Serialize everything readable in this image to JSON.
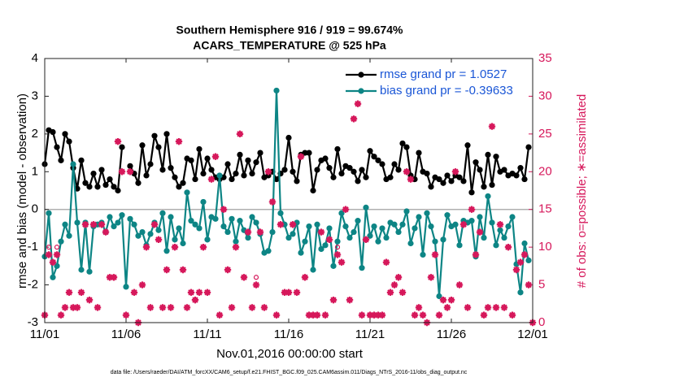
{
  "chart_data": {
    "type": "line",
    "title": "Southern Hemisphere 916 / 919 = 99.674%",
    "subtitle": "ACARS_TEMPERATURE @ 525 hPa",
    "xlabel": "Nov.01,2016 00:00:00 start",
    "ylabel": "rmse and bias (model - observation)",
    "y2label": "# of obs: o=possible; ∗=assimilated",
    "footnote": "data file: /Users/raeder/DAI/ATM_forcXX/CAM6_setup/f.e21.FHIST_BGC.f09_025.CAM6assim.011/Diags_NTrS_2016-11/obs_diag_output.nc",
    "xlim": [
      0,
      30
    ],
    "xticks": [
      {
        "value": 0,
        "label": "11/01"
      },
      {
        "value": 5,
        "label": "11/06"
      },
      {
        "value": 10,
        "label": "11/11"
      },
      {
        "value": 15,
        "label": "11/16"
      },
      {
        "value": 20,
        "label": "11/21"
      },
      {
        "value": 25,
        "label": "11/26"
      },
      {
        "value": 30,
        "label": "12/01"
      }
    ],
    "ylim": [
      -3,
      4
    ],
    "yticks": [
      -3,
      -2,
      -1,
      0,
      1,
      2,
      3,
      4
    ],
    "y2lim": [
      0,
      35
    ],
    "y2ticks": [
      0,
      5,
      10,
      15,
      20,
      25,
      30,
      35
    ],
    "zero_line": true,
    "legend": "upper right",
    "x": [
      0,
      0.25,
      0.5,
      0.75,
      1,
      1.25,
      1.5,
      1.75,
      2,
      2.25,
      2.5,
      2.75,
      3,
      3.25,
      3.5,
      3.75,
      4,
      4.25,
      4.5,
      4.75,
      5,
      5.25,
      5.5,
      5.75,
      6,
      6.25,
      6.5,
      6.75,
      7,
      7.25,
      7.5,
      7.75,
      8,
      8.25,
      8.5,
      8.75,
      9,
      9.25,
      9.5,
      9.75,
      10,
      10.25,
      10.5,
      10.75,
      11,
      11.25,
      11.5,
      11.75,
      12,
      12.25,
      12.5,
      12.75,
      13,
      13.25,
      13.5,
      13.75,
      14,
      14.25,
      14.5,
      14.75,
      15,
      15.25,
      15.5,
      15.75,
      16,
      16.25,
      16.5,
      16.75,
      17,
      17.25,
      17.5,
      17.75,
      18,
      18.25,
      18.5,
      18.75,
      19,
      19.25,
      19.5,
      19.75,
      20,
      20.25,
      20.5,
      20.75,
      21,
      21.25,
      21.5,
      21.75,
      22,
      22.25,
      22.5,
      22.75,
      23,
      23.25,
      23.5,
      23.75,
      24,
      24.25,
      24.5,
      24.75,
      25,
      25.25,
      25.5,
      25.75,
      26,
      26.25,
      26.5,
      26.75,
      27,
      27.25,
      27.5,
      27.75,
      28,
      28.25,
      28.5,
      28.75,
      29,
      29.25,
      29.5,
      29.75,
      30
    ],
    "series": [
      {
        "name": "rmse grand pr = 1.0527",
        "color": "#000000",
        "marker": "dot",
        "values": [
          1.2,
          2.1,
          2.05,
          1.65,
          1.3,
          2.0,
          1.8,
          1.1,
          0.55,
          1.3,
          0.7,
          0.6,
          0.95,
          0.6,
          1.05,
          0.65,
          0.8,
          0.6,
          0.5,
          1.65,
          null,
          1.15,
          0.95,
          0.7,
          1.7,
          0.9,
          1.2,
          1.95,
          1.65,
          1.05,
          2.0,
          1.1,
          0.85,
          0.6,
          0.7,
          1.35,
          1.3,
          0.8,
          1.6,
          0.95,
          1.35,
          1.05,
          0.85,
          0.8,
          0.85,
          1.2,
          0.8,
          0.95,
          1.45,
          0.9,
          1.3,
          0.95,
          1.25,
          1.5,
          0.85,
          0.9,
          1.0,
          0.8,
          0.95,
          1.05,
          1.9,
          1.0,
          0.75,
          1.45,
          1.5,
          1.5,
          0.5,
          1.05,
          1.3,
          1.35,
          1.1,
          0.85,
          1.6,
          0.95,
          1.15,
          1.1,
          1.0,
          0.75,
          1.05,
          0.85,
          1.55,
          1.4,
          1.3,
          1.2,
          0.8,
          0.85,
          1.2,
          1.05,
          1.75,
          1.65,
          0.9,
          0.8,
          1.5,
          1.0,
          0.95,
          0.6,
          0.85,
          0.8,
          0.7,
          0.9,
          0.75,
          0.9,
          0.85,
          0.75,
          1.7,
          0.45,
          1.25,
          1.05,
          0.6,
          1.45,
          0.65,
          1.4,
          1.0,
          1.05,
          0.9,
          0.95,
          0.9,
          1.1,
          0.8,
          1.65,
          null
        ]
      },
      {
        "name": "bias grand pr = -0.39633",
        "color": "#0d8585",
        "marker": "dot",
        "values": [
          -1.25,
          -0.1,
          -1.8,
          -1.5,
          -0.85,
          -0.4,
          -0.7,
          1.2,
          -0.35,
          -1.6,
          -0.35,
          -1.65,
          -0.45,
          -0.4,
          -0.35,
          -0.6,
          -0.2,
          -0.45,
          -0.35,
          -0.15,
          -2.05,
          -0.25,
          -0.4,
          -0.7,
          -0.6,
          -0.95,
          -0.65,
          -0.35,
          -0.55,
          -0.1,
          -1.1,
          -0.2,
          -0.8,
          -0.5,
          -0.9,
          0.45,
          -0.3,
          -0.4,
          -0.5,
          0.2,
          -0.8,
          -0.2,
          -0.25,
          0.9,
          -0.45,
          -0.6,
          -0.25,
          -0.85,
          -0.3,
          -0.55,
          -0.75,
          -0.2,
          -0.35,
          -0.65,
          -1.15,
          -1.1,
          -0.6,
          3.15,
          -0.1,
          -0.4,
          -0.75,
          -0.65,
          -0.35,
          -1.15,
          -0.85,
          -0.45,
          -1.6,
          -0.4,
          -1.05,
          -0.95,
          -0.5,
          -1.5,
          -0.85,
          -0.1,
          -0.45,
          -0.75,
          -0.6,
          -0.3,
          -1.55,
          0.05,
          -0.7,
          -0.45,
          -0.85,
          -0.5,
          -0.75,
          -0.35,
          -0.4,
          -0.6,
          -0.4,
          -0.05,
          -0.9,
          -0.5,
          -0.2,
          -1.2,
          -0.1,
          -0.45,
          -0.85,
          -2.3,
          -0.8,
          -0.15,
          -0.45,
          -0.4,
          -0.95,
          -0.3,
          -0.35,
          -0.3,
          -1.25,
          -0.2,
          -0.75,
          0.35,
          -0.35,
          -0.95,
          -0.55,
          -0.75,
          -0.45,
          -0.2,
          -1.45,
          -2.2,
          -0.9,
          -1.35,
          null
        ]
      },
      {
        "axis": "y2",
        "color": "#d6185b",
        "marker": "circle",
        "values": [
          1,
          10,
          8,
          10,
          1,
          2,
          4,
          2,
          2,
          4,
          13,
          3,
          13,
          2,
          13,
          12,
          6,
          6,
          24,
          20,
          1,
          20,
          4,
          0,
          5,
          10,
          2,
          13,
          11,
          2,
          7,
          2,
          10,
          24,
          7,
          2,
          4,
          3,
          4,
          10,
          4,
          19,
          22,
          1,
          15,
          7,
          2,
          10,
          25,
          6,
          12,
          2,
          6,
          12,
          2,
          20,
          16,
          1,
          13,
          4,
          4,
          13,
          4,
          22,
          6,
          1,
          1,
          1,
          12,
          1,
          11,
          3,
          10,
          8,
          15,
          3,
          27,
          29,
          1,
          11,
          1,
          1,
          1,
          1,
          8,
          4,
          5,
          6,
          4,
          20,
          19,
          1,
          2,
          1,
          0,
          6,
          9,
          1,
          3,
          2,
          3,
          20,
          5,
          13,
          2,
          15,
          9,
          12,
          1,
          2,
          26,
          2,
          13,
          2,
          10,
          1,
          7,
          8,
          9,
          5,
          0
        ]
      },
      {
        "axis": "y2",
        "color": "#d6185b",
        "marker": "star",
        "values": [
          1,
          9,
          8,
          9,
          1,
          2,
          4,
          2,
          2,
          4,
          13,
          3,
          13,
          2,
          13,
          12,
          6,
          6,
          24,
          20,
          1,
          20,
          4,
          0,
          5,
          10,
          2,
          13,
          11,
          2,
          7,
          2,
          10,
          24,
          7,
          2,
          4,
          3,
          4,
          10,
          4,
          19,
          22,
          1,
          15,
          7,
          2,
          10,
          25,
          6,
          12,
          2,
          5,
          12,
          2,
          20,
          16,
          1,
          13,
          4,
          4,
          13,
          4,
          22,
          6,
          1,
          1,
          1,
          12,
          1,
          11,
          3,
          9,
          8,
          15,
          3,
          27,
          29,
          1,
          11,
          1,
          1,
          1,
          1,
          8,
          4,
          5,
          6,
          4,
          20,
          19,
          1,
          2,
          1,
          0,
          6,
          9,
          1,
          3,
          2,
          3,
          20,
          5,
          13,
          2,
          15,
          9,
          12,
          1,
          2,
          26,
          2,
          13,
          2,
          10,
          1,
          7,
          8,
          9,
          5,
          0
        ]
      }
    ]
  }
}
